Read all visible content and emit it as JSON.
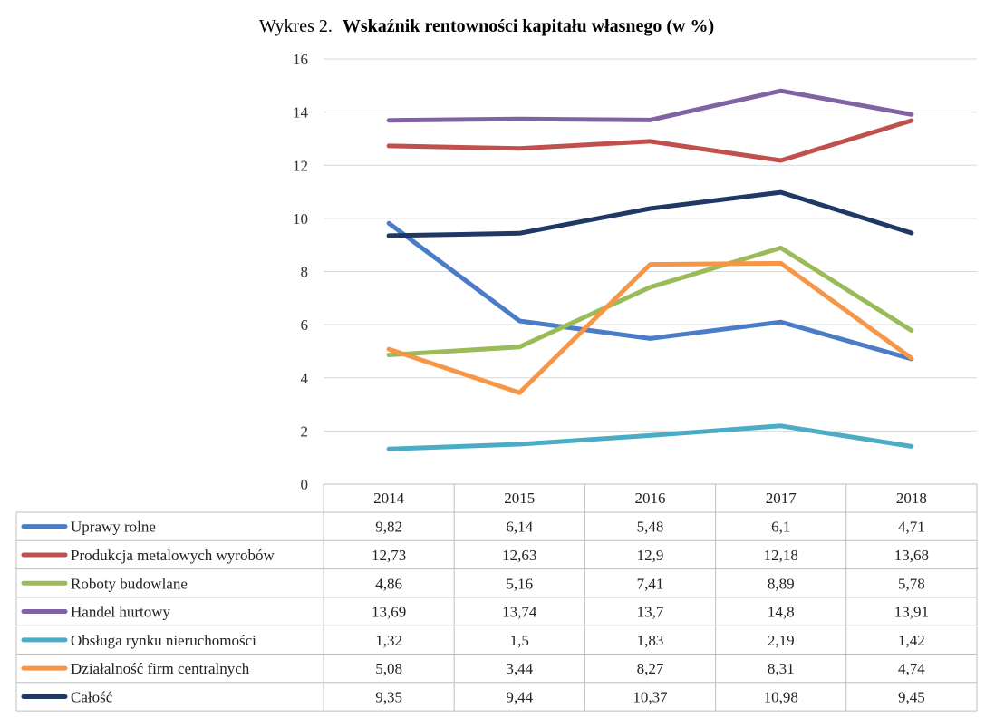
{
  "chart_data": {
    "type": "line",
    "title_prefix": "Wykres 2.",
    "title": "Wskaźnik rentowności kapitału własnego (w %)",
    "categories": [
      "2014",
      "2015",
      "2016",
      "2017",
      "2018"
    ],
    "ylim": [
      0,
      16
    ],
    "yticks": [
      "0",
      "2",
      "4",
      "6",
      "8",
      "10",
      "12",
      "14",
      "16"
    ],
    "grid": true,
    "legend": "data-table",
    "series": [
      {
        "name": "Uprawy rolne",
        "color": "#4a7cc7",
        "values": [
          9.82,
          6.14,
          5.48,
          6.1,
          4.71
        ],
        "labels": [
          "9,82",
          "6,14",
          "5,48",
          "6,1",
          "4,71"
        ]
      },
      {
        "name": "Produkcja metalowych wyrobów",
        "color": "#c0504d",
        "values": [
          12.73,
          12.63,
          12.9,
          12.18,
          13.68
        ],
        "labels": [
          "12,73",
          "12,63",
          "12,9",
          "12,18",
          "13,68"
        ]
      },
      {
        "name": "Roboty budowlane",
        "color": "#9bbb59",
        "values": [
          4.86,
          5.16,
          7.41,
          8.89,
          5.78
        ],
        "labels": [
          "4,86",
          "5,16",
          "7,41",
          "8,89",
          "5,78"
        ]
      },
      {
        "name": "Handel hurtowy",
        "color": "#8064a2",
        "values": [
          13.69,
          13.74,
          13.7,
          14.8,
          13.91
        ],
        "labels": [
          "13,69",
          "13,74",
          "13,7",
          "14,8",
          "13,91"
        ]
      },
      {
        "name": "Obsługa rynku nieruchomości",
        "color": "#4bacc6",
        "values": [
          1.32,
          1.5,
          1.83,
          2.19,
          1.42
        ],
        "labels": [
          "1,32",
          "1,5",
          "1,83",
          "2,19",
          "1,42"
        ]
      },
      {
        "name": "Działalność firm centralnych",
        "color": "#f79646",
        "values": [
          5.08,
          3.44,
          8.27,
          8.31,
          4.74
        ],
        "labels": [
          "5,08",
          "3,44",
          "8,27",
          "8,31",
          "4,74"
        ]
      },
      {
        "name": "Całość",
        "color": "#1f3864",
        "values": [
          9.35,
          9.44,
          10.37,
          10.98,
          9.45
        ],
        "labels": [
          "9,35",
          "9,44",
          "10,37",
          "10,98",
          "9,45"
        ]
      }
    ]
  }
}
